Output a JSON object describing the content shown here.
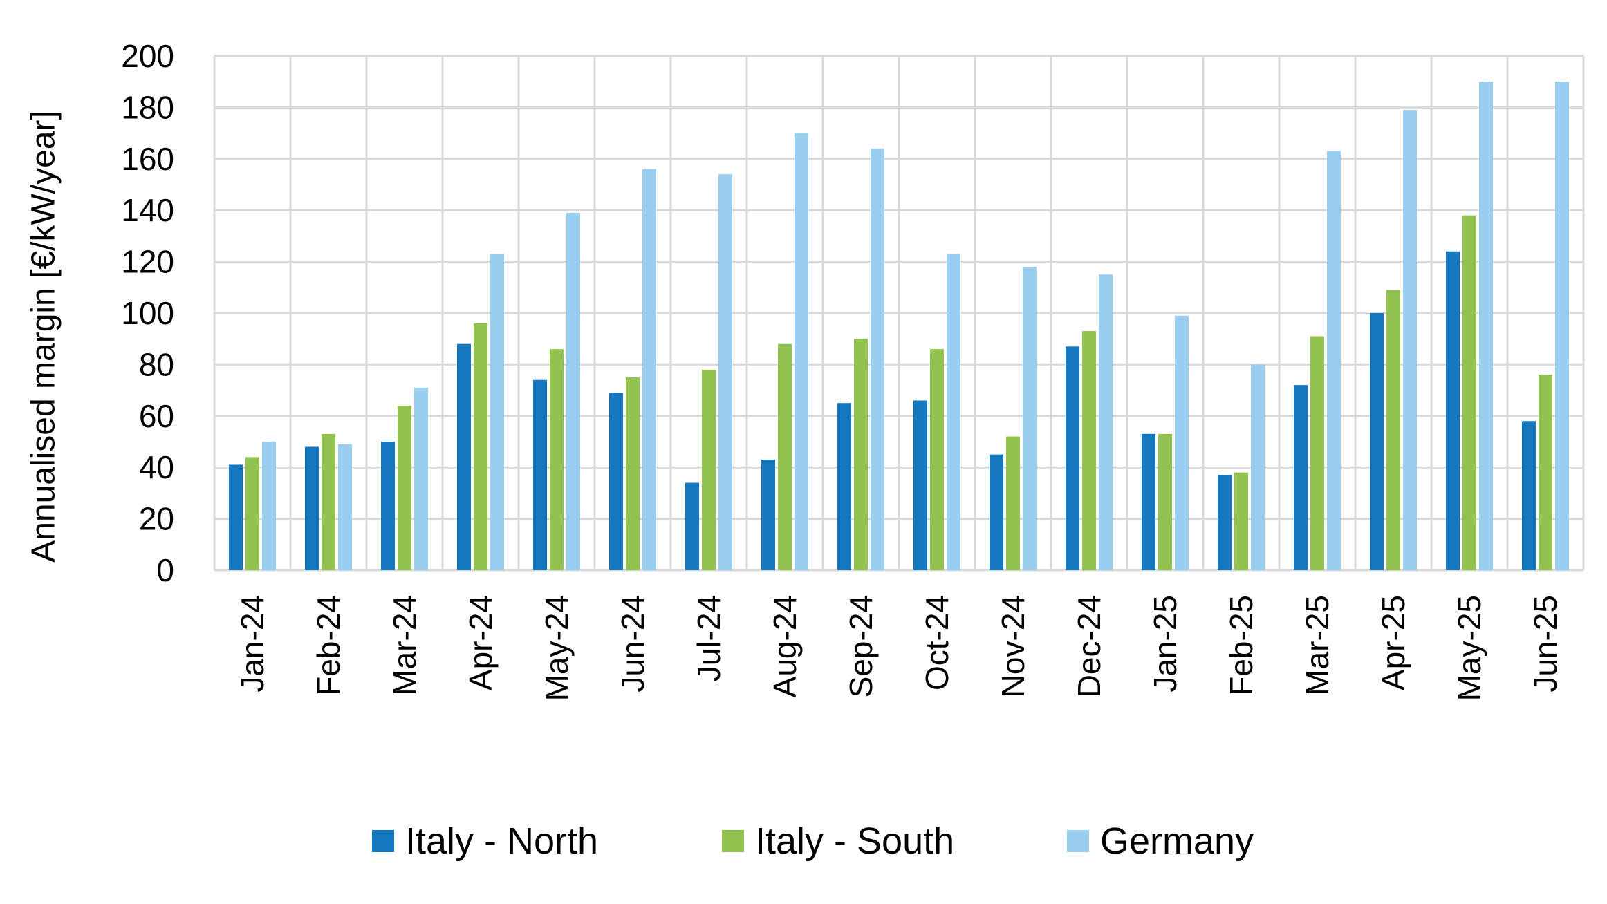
{
  "chart_data": {
    "type": "bar",
    "title": "",
    "xlabel": "",
    "ylabel": "Annualised margin [€/kW/year]",
    "ylim": [
      0,
      200
    ],
    "yticks": [
      0,
      20,
      40,
      60,
      80,
      100,
      120,
      140,
      160,
      180,
      200
    ],
    "grid": true,
    "legend_position": "bottom",
    "categories": [
      "Jan-24",
      "Feb-24",
      "Mar-24",
      "Apr-24",
      "May-24",
      "Jun-24",
      "Jul-24",
      "Aug-24",
      "Sep-24",
      "Oct-24",
      "Nov-24",
      "Dec-24",
      "Jan-25",
      "Feb-25",
      "Mar-25",
      "Apr-25",
      "May-25",
      "Jun-25"
    ],
    "series": [
      {
        "name": "Italy - North",
        "color": "#1577BE",
        "values": [
          41,
          48,
          50,
          88,
          74,
          69,
          34,
          43,
          65,
          66,
          45,
          87,
          53,
          37,
          72,
          100,
          124,
          58
        ]
      },
      {
        "name": "Italy - South",
        "color": "#92C350",
        "values": [
          44,
          53,
          64,
          96,
          86,
          75,
          78,
          88,
          90,
          86,
          52,
          93,
          53,
          38,
          91,
          109,
          138,
          76
        ]
      },
      {
        "name": "Germany",
        "color": "#9ACEF0",
        "values": [
          50,
          49,
          71,
          123,
          139,
          156,
          154,
          170,
          164,
          123,
          118,
          115,
          99,
          80,
          163,
          179,
          190,
          190
        ]
      }
    ]
  }
}
